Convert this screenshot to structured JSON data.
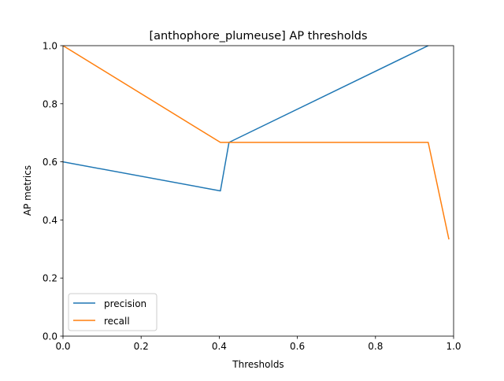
{
  "chart_data": {
    "type": "line",
    "title": "[anthophore_plumeuse] AP thresholds",
    "xlabel": "Thresholds",
    "ylabel": "AP metrics",
    "xlim": [
      0.0,
      1.0
    ],
    "ylim": [
      0.0,
      1.0
    ],
    "xticks": [
      0.0,
      0.2,
      0.4,
      0.6,
      0.8,
      1.0
    ],
    "yticks": [
      0.0,
      0.2,
      0.4,
      0.6,
      0.8,
      1.0
    ],
    "xtick_labels": [
      "0.0",
      "0.2",
      "0.4",
      "0.6",
      "0.8",
      "1.0"
    ],
    "ytick_labels": [
      "0.0",
      "0.2",
      "0.4",
      "0.6",
      "0.8",
      "1.0"
    ],
    "grid": false,
    "legend_position": "lower-left",
    "series": [
      {
        "name": "precision",
        "color": "#1f77b4",
        "x": [
          0.0,
          0.403,
          0.425,
          0.935
        ],
        "y": [
          0.6,
          0.5,
          0.667,
          1.0
        ]
      },
      {
        "name": "recall",
        "color": "#ff7f0e",
        "x": [
          0.0,
          0.403,
          0.425,
          0.935,
          0.988
        ],
        "y": [
          1.0,
          0.667,
          0.667,
          0.667,
          0.333
        ]
      }
    ]
  }
}
